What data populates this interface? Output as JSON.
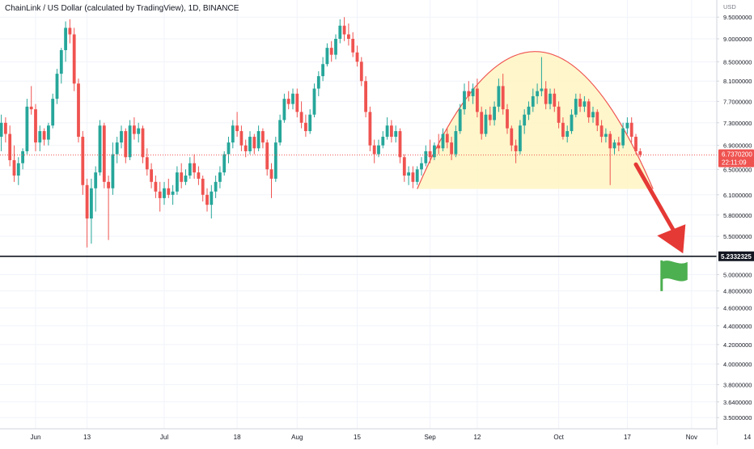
{
  "header": {
    "title": "ChainLink / US Dollar (calculated by TradingView), 1D, BINANCE"
  },
  "price_axis": {
    "currency": "USD",
    "last_price_label": "6.7370200",
    "countdown_label": "22:11:09",
    "support_label": "5.2332325"
  },
  "colors": {
    "up": "#26a69a",
    "down": "#ef5350",
    "arc": "#ef5350",
    "dome_fill": "#fff4c2",
    "arrow": "#e53935",
    "flag": "#4caf50",
    "support_line": "#131722",
    "grid": "#f0f3fa"
  },
  "annotations": {
    "flag_icon": "flag-icon",
    "arrow_icon": "arrow-down-icon"
  },
  "chart_data": {
    "type": "candlestick",
    "title": "ChainLink / US Dollar (calculated by TradingView), 1D, BINANCE",
    "ylabel": "USD",
    "y_scale": "log",
    "ylim": [
      3.38,
      9.62
    ],
    "y_ticks": [
      "9.5000000",
      "9.0000000",
      "8.5000000",
      "8.1000000",
      "7.7000000",
      "7.3000000",
      "6.9000000",
      "6.5000000",
      "6.1000000",
      "5.8000000",
      "5.5000000",
      "5.0000000",
      "4.8000000",
      "4.6000000",
      "4.4000000",
      "4.2000000",
      "4.0000000",
      "3.8000000",
      "3.6400000",
      "3.5000000"
    ],
    "x_ticks": [
      "Jun",
      "13",
      "Jul",
      "18",
      "Aug",
      "15",
      "Sep",
      "12",
      "Oct",
      "17",
      "Nov",
      "14"
    ],
    "last_price": 6.73702,
    "support_level": 5.2332325,
    "grid": true,
    "candles": [
      {
        "date": "2022-05-24",
        "o": 7.05,
        "h": 7.45,
        "l": 6.8,
        "c": 7.3
      },
      {
        "date": "2022-05-25",
        "o": 7.3,
        "h": 7.4,
        "l": 6.95,
        "c": 7.1
      },
      {
        "date": "2022-05-26",
        "o": 7.1,
        "h": 7.25,
        "l": 6.55,
        "c": 6.65
      },
      {
        "date": "2022-05-27",
        "o": 6.65,
        "h": 6.9,
        "l": 6.3,
        "c": 6.4
      },
      {
        "date": "2022-05-28",
        "o": 6.4,
        "h": 6.7,
        "l": 6.25,
        "c": 6.6
      },
      {
        "date": "2022-05-29",
        "o": 6.6,
        "h": 6.85,
        "l": 6.5,
        "c": 6.8
      },
      {
        "date": "2022-05-30",
        "o": 6.8,
        "h": 7.75,
        "l": 6.75,
        "c": 7.6
      },
      {
        "date": "2022-05-31",
        "o": 7.6,
        "h": 8.0,
        "l": 7.45,
        "c": 7.55
      },
      {
        "date": "2022-06-01",
        "o": 7.55,
        "h": 7.65,
        "l": 6.8,
        "c": 6.95
      },
      {
        "date": "2022-06-02",
        "o": 6.95,
        "h": 7.25,
        "l": 6.8,
        "c": 7.15
      },
      {
        "date": "2022-06-03",
        "o": 7.15,
        "h": 7.2,
        "l": 6.9,
        "c": 7.0
      },
      {
        "date": "2022-06-04",
        "o": 7.0,
        "h": 7.3,
        "l": 6.9,
        "c": 7.25
      },
      {
        "date": "2022-06-05",
        "o": 7.25,
        "h": 7.85,
        "l": 7.2,
        "c": 7.75
      },
      {
        "date": "2022-06-06",
        "o": 7.75,
        "h": 8.35,
        "l": 7.65,
        "c": 8.25
      },
      {
        "date": "2022-06-07",
        "o": 8.25,
        "h": 8.8,
        "l": 8.05,
        "c": 8.75
      },
      {
        "date": "2022-06-08",
        "o": 8.75,
        "h": 9.4,
        "l": 8.5,
        "c": 9.25
      },
      {
        "date": "2022-06-09",
        "o": 9.25,
        "h": 9.45,
        "l": 8.9,
        "c": 9.1
      },
      {
        "date": "2022-06-10",
        "o": 9.1,
        "h": 9.25,
        "l": 7.9,
        "c": 8.05
      },
      {
        "date": "2022-06-11",
        "o": 8.05,
        "h": 8.15,
        "l": 6.95,
        "c": 7.05
      },
      {
        "date": "2022-06-12",
        "o": 7.05,
        "h": 7.15,
        "l": 6.1,
        "c": 6.25
      },
      {
        "date": "2022-06-13",
        "o": 6.25,
        "h": 6.35,
        "l": 5.35,
        "c": 5.75
      },
      {
        "date": "2022-06-14",
        "o": 5.75,
        "h": 6.35,
        "l": 5.4,
        "c": 6.2
      },
      {
        "date": "2022-06-15",
        "o": 6.2,
        "h": 6.55,
        "l": 5.85,
        "c": 6.45
      },
      {
        "date": "2022-06-16",
        "o": 6.45,
        "h": 7.35,
        "l": 6.4,
        "c": 7.25
      },
      {
        "date": "2022-06-17",
        "o": 7.25,
        "h": 7.3,
        "l": 6.2,
        "c": 6.3
      },
      {
        "date": "2022-06-18",
        "o": 6.3,
        "h": 6.4,
        "l": 5.45,
        "c": 6.2
      },
      {
        "date": "2022-06-19",
        "o": 6.2,
        "h": 6.95,
        "l": 6.1,
        "c": 6.75
      },
      {
        "date": "2022-06-20",
        "o": 6.75,
        "h": 7.05,
        "l": 6.6,
        "c": 6.95
      },
      {
        "date": "2022-06-21",
        "o": 6.95,
        "h": 7.25,
        "l": 6.85,
        "c": 7.15
      },
      {
        "date": "2022-06-22",
        "o": 7.15,
        "h": 7.2,
        "l": 6.6,
        "c": 6.7
      },
      {
        "date": "2022-06-23",
        "o": 6.7,
        "h": 7.35,
        "l": 6.65,
        "c": 7.25
      },
      {
        "date": "2022-06-24",
        "o": 7.25,
        "h": 7.4,
        "l": 7.0,
        "c": 7.1
      },
      {
        "date": "2022-06-25",
        "o": 7.1,
        "h": 7.3,
        "l": 6.95,
        "c": 7.2
      },
      {
        "date": "2022-06-26",
        "o": 7.2,
        "h": 7.25,
        "l": 6.6,
        "c": 6.7
      },
      {
        "date": "2022-06-27",
        "o": 6.7,
        "h": 6.85,
        "l": 6.4,
        "c": 6.5
      },
      {
        "date": "2022-06-28",
        "o": 6.5,
        "h": 6.6,
        "l": 6.2,
        "c": 6.3
      },
      {
        "date": "2022-06-29",
        "o": 6.3,
        "h": 6.4,
        "l": 6.05,
        "c": 6.15
      },
      {
        "date": "2022-06-30",
        "o": 6.15,
        "h": 6.3,
        "l": 5.85,
        "c": 6.05
      },
      {
        "date": "2022-07-01",
        "o": 6.05,
        "h": 6.3,
        "l": 5.95,
        "c": 6.2
      },
      {
        "date": "2022-07-02",
        "o": 6.2,
        "h": 6.35,
        "l": 6.05,
        "c": 6.1
      },
      {
        "date": "2022-07-03",
        "o": 6.1,
        "h": 6.25,
        "l": 5.95,
        "c": 6.15
      },
      {
        "date": "2022-07-04",
        "o": 6.15,
        "h": 6.55,
        "l": 6.1,
        "c": 6.45
      },
      {
        "date": "2022-07-05",
        "o": 6.45,
        "h": 6.6,
        "l": 6.2,
        "c": 6.3
      },
      {
        "date": "2022-07-06",
        "o": 6.3,
        "h": 6.5,
        "l": 6.25,
        "c": 6.4
      },
      {
        "date": "2022-07-07",
        "o": 6.4,
        "h": 6.7,
        "l": 6.35,
        "c": 6.6
      },
      {
        "date": "2022-07-08",
        "o": 6.6,
        "h": 6.75,
        "l": 6.35,
        "c": 6.45
      },
      {
        "date": "2022-07-09",
        "o": 6.45,
        "h": 6.55,
        "l": 6.25,
        "c": 6.35
      },
      {
        "date": "2022-07-10",
        "o": 6.35,
        "h": 6.4,
        "l": 6.0,
        "c": 6.1
      },
      {
        "date": "2022-07-11",
        "o": 6.1,
        "h": 6.2,
        "l": 5.85,
        "c": 5.95
      },
      {
        "date": "2022-07-12",
        "o": 5.95,
        "h": 6.25,
        "l": 5.75,
        "c": 6.15
      },
      {
        "date": "2022-07-13",
        "o": 6.15,
        "h": 6.4,
        "l": 6.05,
        "c": 6.3
      },
      {
        "date": "2022-07-14",
        "o": 6.3,
        "h": 6.55,
        "l": 6.2,
        "c": 6.45
      },
      {
        "date": "2022-07-15",
        "o": 6.45,
        "h": 6.8,
        "l": 6.4,
        "c": 6.75
      },
      {
        "date": "2022-07-16",
        "o": 6.75,
        "h": 7.05,
        "l": 6.6,
        "c": 6.95
      },
      {
        "date": "2022-07-17",
        "o": 6.95,
        "h": 7.35,
        "l": 6.85,
        "c": 7.25
      },
      {
        "date": "2022-07-18",
        "o": 7.25,
        "h": 7.5,
        "l": 7.05,
        "c": 7.15
      },
      {
        "date": "2022-07-19",
        "o": 7.15,
        "h": 7.25,
        "l": 6.8,
        "c": 6.9
      },
      {
        "date": "2022-07-20",
        "o": 6.9,
        "h": 7.0,
        "l": 6.7,
        "c": 6.8
      },
      {
        "date": "2022-07-21",
        "o": 6.8,
        "h": 7.15,
        "l": 6.75,
        "c": 7.05
      },
      {
        "date": "2022-07-22",
        "o": 7.05,
        "h": 7.1,
        "l": 6.75,
        "c": 6.85
      },
      {
        "date": "2022-07-23",
        "o": 6.85,
        "h": 7.25,
        "l": 6.8,
        "c": 7.15
      },
      {
        "date": "2022-07-24",
        "o": 7.15,
        "h": 7.2,
        "l": 6.85,
        "c": 6.95
      },
      {
        "date": "2022-07-25",
        "o": 6.95,
        "h": 7.0,
        "l": 6.4,
        "c": 6.5
      },
      {
        "date": "2022-07-26",
        "o": 6.5,
        "h": 6.6,
        "l": 6.05,
        "c": 6.35
      },
      {
        "date": "2022-07-27",
        "o": 6.35,
        "h": 7.05,
        "l": 6.3,
        "c": 6.95
      },
      {
        "date": "2022-07-28",
        "o": 6.95,
        "h": 7.45,
        "l": 6.9,
        "c": 7.35
      },
      {
        "date": "2022-07-29",
        "o": 7.35,
        "h": 7.85,
        "l": 7.3,
        "c": 7.75
      },
      {
        "date": "2022-07-30",
        "o": 7.75,
        "h": 7.9,
        "l": 7.55,
        "c": 7.65
      },
      {
        "date": "2022-07-31",
        "o": 7.65,
        "h": 7.95,
        "l": 7.55,
        "c": 7.85
      },
      {
        "date": "2022-08-01",
        "o": 7.85,
        "h": 7.95,
        "l": 7.4,
        "c": 7.5
      },
      {
        "date": "2022-08-02",
        "o": 7.5,
        "h": 7.7,
        "l": 7.2,
        "c": 7.3
      },
      {
        "date": "2022-08-03",
        "o": 7.3,
        "h": 7.45,
        "l": 7.05,
        "c": 7.15
      },
      {
        "date": "2022-08-04",
        "o": 7.15,
        "h": 7.55,
        "l": 7.1,
        "c": 7.45
      },
      {
        "date": "2022-08-05",
        "o": 7.45,
        "h": 8.05,
        "l": 7.4,
        "c": 7.95
      },
      {
        "date": "2022-08-06",
        "o": 7.95,
        "h": 8.3,
        "l": 7.8,
        "c": 8.2
      },
      {
        "date": "2022-08-07",
        "o": 8.2,
        "h": 8.6,
        "l": 8.1,
        "c": 8.45
      },
      {
        "date": "2022-08-08",
        "o": 8.45,
        "h": 8.9,
        "l": 8.4,
        "c": 8.8
      },
      {
        "date": "2022-08-09",
        "o": 8.8,
        "h": 8.95,
        "l": 8.5,
        "c": 8.65
      },
      {
        "date": "2022-08-10",
        "o": 8.65,
        "h": 9.1,
        "l": 8.55,
        "c": 9.0
      },
      {
        "date": "2022-08-11",
        "o": 9.0,
        "h": 9.45,
        "l": 8.9,
        "c": 9.3
      },
      {
        "date": "2022-08-12",
        "o": 9.3,
        "h": 9.5,
        "l": 8.95,
        "c": 9.1
      },
      {
        "date": "2022-08-13",
        "o": 9.1,
        "h": 9.35,
        "l": 8.85,
        "c": 9.0
      },
      {
        "date": "2022-08-14",
        "o": 9.0,
        "h": 9.15,
        "l": 8.6,
        "c": 8.7
      },
      {
        "date": "2022-08-15",
        "o": 8.7,
        "h": 8.85,
        "l": 8.4,
        "c": 8.5
      },
      {
        "date": "2022-08-16",
        "o": 8.5,
        "h": 8.6,
        "l": 8.0,
        "c": 8.1
      },
      {
        "date": "2022-08-17",
        "o": 8.1,
        "h": 8.2,
        "l": 7.4,
        "c": 7.5
      },
      {
        "date": "2022-08-18",
        "o": 7.5,
        "h": 7.6,
        "l": 6.8,
        "c": 6.9
      },
      {
        "date": "2022-08-19",
        "o": 6.9,
        "h": 7.0,
        "l": 6.6,
        "c": 6.75
      },
      {
        "date": "2022-08-20",
        "o": 6.75,
        "h": 7.0,
        "l": 6.7,
        "c": 6.9
      },
      {
        "date": "2022-08-21",
        "o": 6.9,
        "h": 7.15,
        "l": 6.85,
        "c": 7.05
      },
      {
        "date": "2022-08-22",
        "o": 7.05,
        "h": 7.4,
        "l": 7.0,
        "c": 7.25
      },
      {
        "date": "2022-08-23",
        "o": 7.25,
        "h": 7.35,
        "l": 6.95,
        "c": 7.05
      },
      {
        "date": "2022-08-24",
        "o": 7.05,
        "h": 7.25,
        "l": 6.95,
        "c": 7.15
      },
      {
        "date": "2022-08-25",
        "o": 7.15,
        "h": 7.2,
        "l": 6.6,
        "c": 6.7
      },
      {
        "date": "2022-08-26",
        "o": 6.7,
        "h": 6.75,
        "l": 6.3,
        "c": 6.4
      },
      {
        "date": "2022-08-27",
        "o": 6.4,
        "h": 6.55,
        "l": 6.25,
        "c": 6.45
      },
      {
        "date": "2022-08-28",
        "o": 6.45,
        "h": 6.55,
        "l": 6.2,
        "c": 6.3
      },
      {
        "date": "2022-08-29",
        "o": 6.3,
        "h": 6.55,
        "l": 6.25,
        "c": 6.5
      },
      {
        "date": "2022-08-30",
        "o": 6.5,
        "h": 6.7,
        "l": 6.4,
        "c": 6.6
      },
      {
        "date": "2022-08-31",
        "o": 6.6,
        "h": 6.9,
        "l": 6.55,
        "c": 6.8
      },
      {
        "date": "2022-09-01",
        "o": 6.8,
        "h": 7.0,
        "l": 6.6,
        "c": 6.7
      },
      {
        "date": "2022-09-02",
        "o": 6.7,
        "h": 6.95,
        "l": 6.65,
        "c": 6.9
      },
      {
        "date": "2022-09-03",
        "o": 6.9,
        "h": 7.1,
        "l": 6.75,
        "c": 6.85
      },
      {
        "date": "2022-09-04",
        "o": 6.85,
        "h": 7.2,
        "l": 6.8,
        "c": 7.1
      },
      {
        "date": "2022-09-05",
        "o": 7.1,
        "h": 7.2,
        "l": 6.85,
        "c": 6.95
      },
      {
        "date": "2022-09-06",
        "o": 6.95,
        "h": 7.05,
        "l": 6.65,
        "c": 6.75
      },
      {
        "date": "2022-09-07",
        "o": 6.75,
        "h": 7.25,
        "l": 6.7,
        "c": 7.15
      },
      {
        "date": "2022-09-08",
        "o": 7.15,
        "h": 7.65,
        "l": 7.1,
        "c": 7.55
      },
      {
        "date": "2022-09-09",
        "o": 7.55,
        "h": 8.05,
        "l": 7.45,
        "c": 7.9
      },
      {
        "date": "2022-09-10",
        "o": 7.9,
        "h": 8.1,
        "l": 7.7,
        "c": 7.8
      },
      {
        "date": "2022-09-11",
        "o": 7.8,
        "h": 8.05,
        "l": 7.65,
        "c": 7.95
      },
      {
        "date": "2022-09-12",
        "o": 7.95,
        "h": 8.15,
        "l": 7.4,
        "c": 7.5
      },
      {
        "date": "2022-09-13",
        "o": 7.5,
        "h": 7.6,
        "l": 7.0,
        "c": 7.1
      },
      {
        "date": "2022-09-14",
        "o": 7.1,
        "h": 7.55,
        "l": 7.05,
        "c": 7.45
      },
      {
        "date": "2022-09-15",
        "o": 7.45,
        "h": 7.6,
        "l": 7.25,
        "c": 7.35
      },
      {
        "date": "2022-09-16",
        "o": 7.35,
        "h": 7.7,
        "l": 7.25,
        "c": 7.6
      },
      {
        "date": "2022-09-17",
        "o": 7.6,
        "h": 8.15,
        "l": 7.5,
        "c": 8.0
      },
      {
        "date": "2022-09-18",
        "o": 8.0,
        "h": 8.25,
        "l": 7.45,
        "c": 7.55
      },
      {
        "date": "2022-09-19",
        "o": 7.55,
        "h": 7.65,
        "l": 7.1,
        "c": 7.2
      },
      {
        "date": "2022-09-20",
        "o": 7.2,
        "h": 7.25,
        "l": 6.8,
        "c": 6.9
      },
      {
        "date": "2022-09-21",
        "o": 6.9,
        "h": 7.0,
        "l": 6.6,
        "c": 6.8
      },
      {
        "date": "2022-09-22",
        "o": 6.8,
        "h": 7.35,
        "l": 6.75,
        "c": 7.25
      },
      {
        "date": "2022-09-23",
        "o": 7.25,
        "h": 7.55,
        "l": 7.1,
        "c": 7.45
      },
      {
        "date": "2022-09-24",
        "o": 7.45,
        "h": 7.7,
        "l": 7.35,
        "c": 7.6
      },
      {
        "date": "2022-09-25",
        "o": 7.6,
        "h": 7.95,
        "l": 7.5,
        "c": 7.8
      },
      {
        "date": "2022-09-26",
        "o": 7.8,
        "h": 8.05,
        "l": 7.65,
        "c": 7.9
      },
      {
        "date": "2022-09-27",
        "o": 7.9,
        "h": 8.6,
        "l": 7.8,
        "c": 7.95
      },
      {
        "date": "2022-09-28",
        "o": 7.95,
        "h": 8.1,
        "l": 7.55,
        "c": 7.65
      },
      {
        "date": "2022-09-29",
        "o": 7.65,
        "h": 7.95,
        "l": 7.55,
        "c": 7.85
      },
      {
        "date": "2022-09-30",
        "o": 7.85,
        "h": 7.95,
        "l": 7.5,
        "c": 7.6
      },
      {
        "date": "2022-10-01",
        "o": 7.6,
        "h": 7.7,
        "l": 7.2,
        "c": 7.3
      },
      {
        "date": "2022-10-02",
        "o": 7.3,
        "h": 7.4,
        "l": 7.0,
        "c": 7.05
      },
      {
        "date": "2022-10-03",
        "o": 7.05,
        "h": 7.25,
        "l": 6.95,
        "c": 7.15
      },
      {
        "date": "2022-10-04",
        "o": 7.15,
        "h": 7.55,
        "l": 7.1,
        "c": 7.45
      },
      {
        "date": "2022-10-05",
        "o": 7.45,
        "h": 7.85,
        "l": 7.4,
        "c": 7.75
      },
      {
        "date": "2022-10-06",
        "o": 7.75,
        "h": 7.85,
        "l": 7.5,
        "c": 7.6
      },
      {
        "date": "2022-10-07",
        "o": 7.6,
        "h": 7.8,
        "l": 7.5,
        "c": 7.7
      },
      {
        "date": "2022-10-08",
        "o": 7.7,
        "h": 7.75,
        "l": 7.3,
        "c": 7.4
      },
      {
        "date": "2022-10-09",
        "o": 7.4,
        "h": 7.6,
        "l": 7.3,
        "c": 7.5
      },
      {
        "date": "2022-10-10",
        "o": 7.5,
        "h": 7.55,
        "l": 7.15,
        "c": 7.25
      },
      {
        "date": "2022-10-11",
        "o": 7.25,
        "h": 7.35,
        "l": 6.95,
        "c": 7.05
      },
      {
        "date": "2022-10-12",
        "o": 7.05,
        "h": 7.2,
        "l": 6.95,
        "c": 7.1
      },
      {
        "date": "2022-10-13",
        "o": 7.1,
        "h": 7.15,
        "l": 6.25,
        "c": 6.85
      },
      {
        "date": "2022-10-14",
        "o": 6.85,
        "h": 7.0,
        "l": 6.75,
        "c": 6.95
      },
      {
        "date": "2022-10-15",
        "o": 6.95,
        "h": 7.05,
        "l": 6.8,
        "c": 6.9
      },
      {
        "date": "2022-10-16",
        "o": 6.9,
        "h": 7.3,
        "l": 6.85,
        "c": 7.2
      },
      {
        "date": "2022-10-17",
        "o": 7.2,
        "h": 7.4,
        "l": 7.1,
        "c": 7.3
      },
      {
        "date": "2022-10-18",
        "o": 7.3,
        "h": 7.4,
        "l": 6.95,
        "c": 7.05
      },
      {
        "date": "2022-10-19",
        "o": 7.05,
        "h": 7.1,
        "l": 6.75,
        "c": 6.8
      },
      {
        "date": "2022-10-20",
        "o": 6.8,
        "h": 6.85,
        "l": 6.7,
        "c": 6.74
      }
    ]
  }
}
